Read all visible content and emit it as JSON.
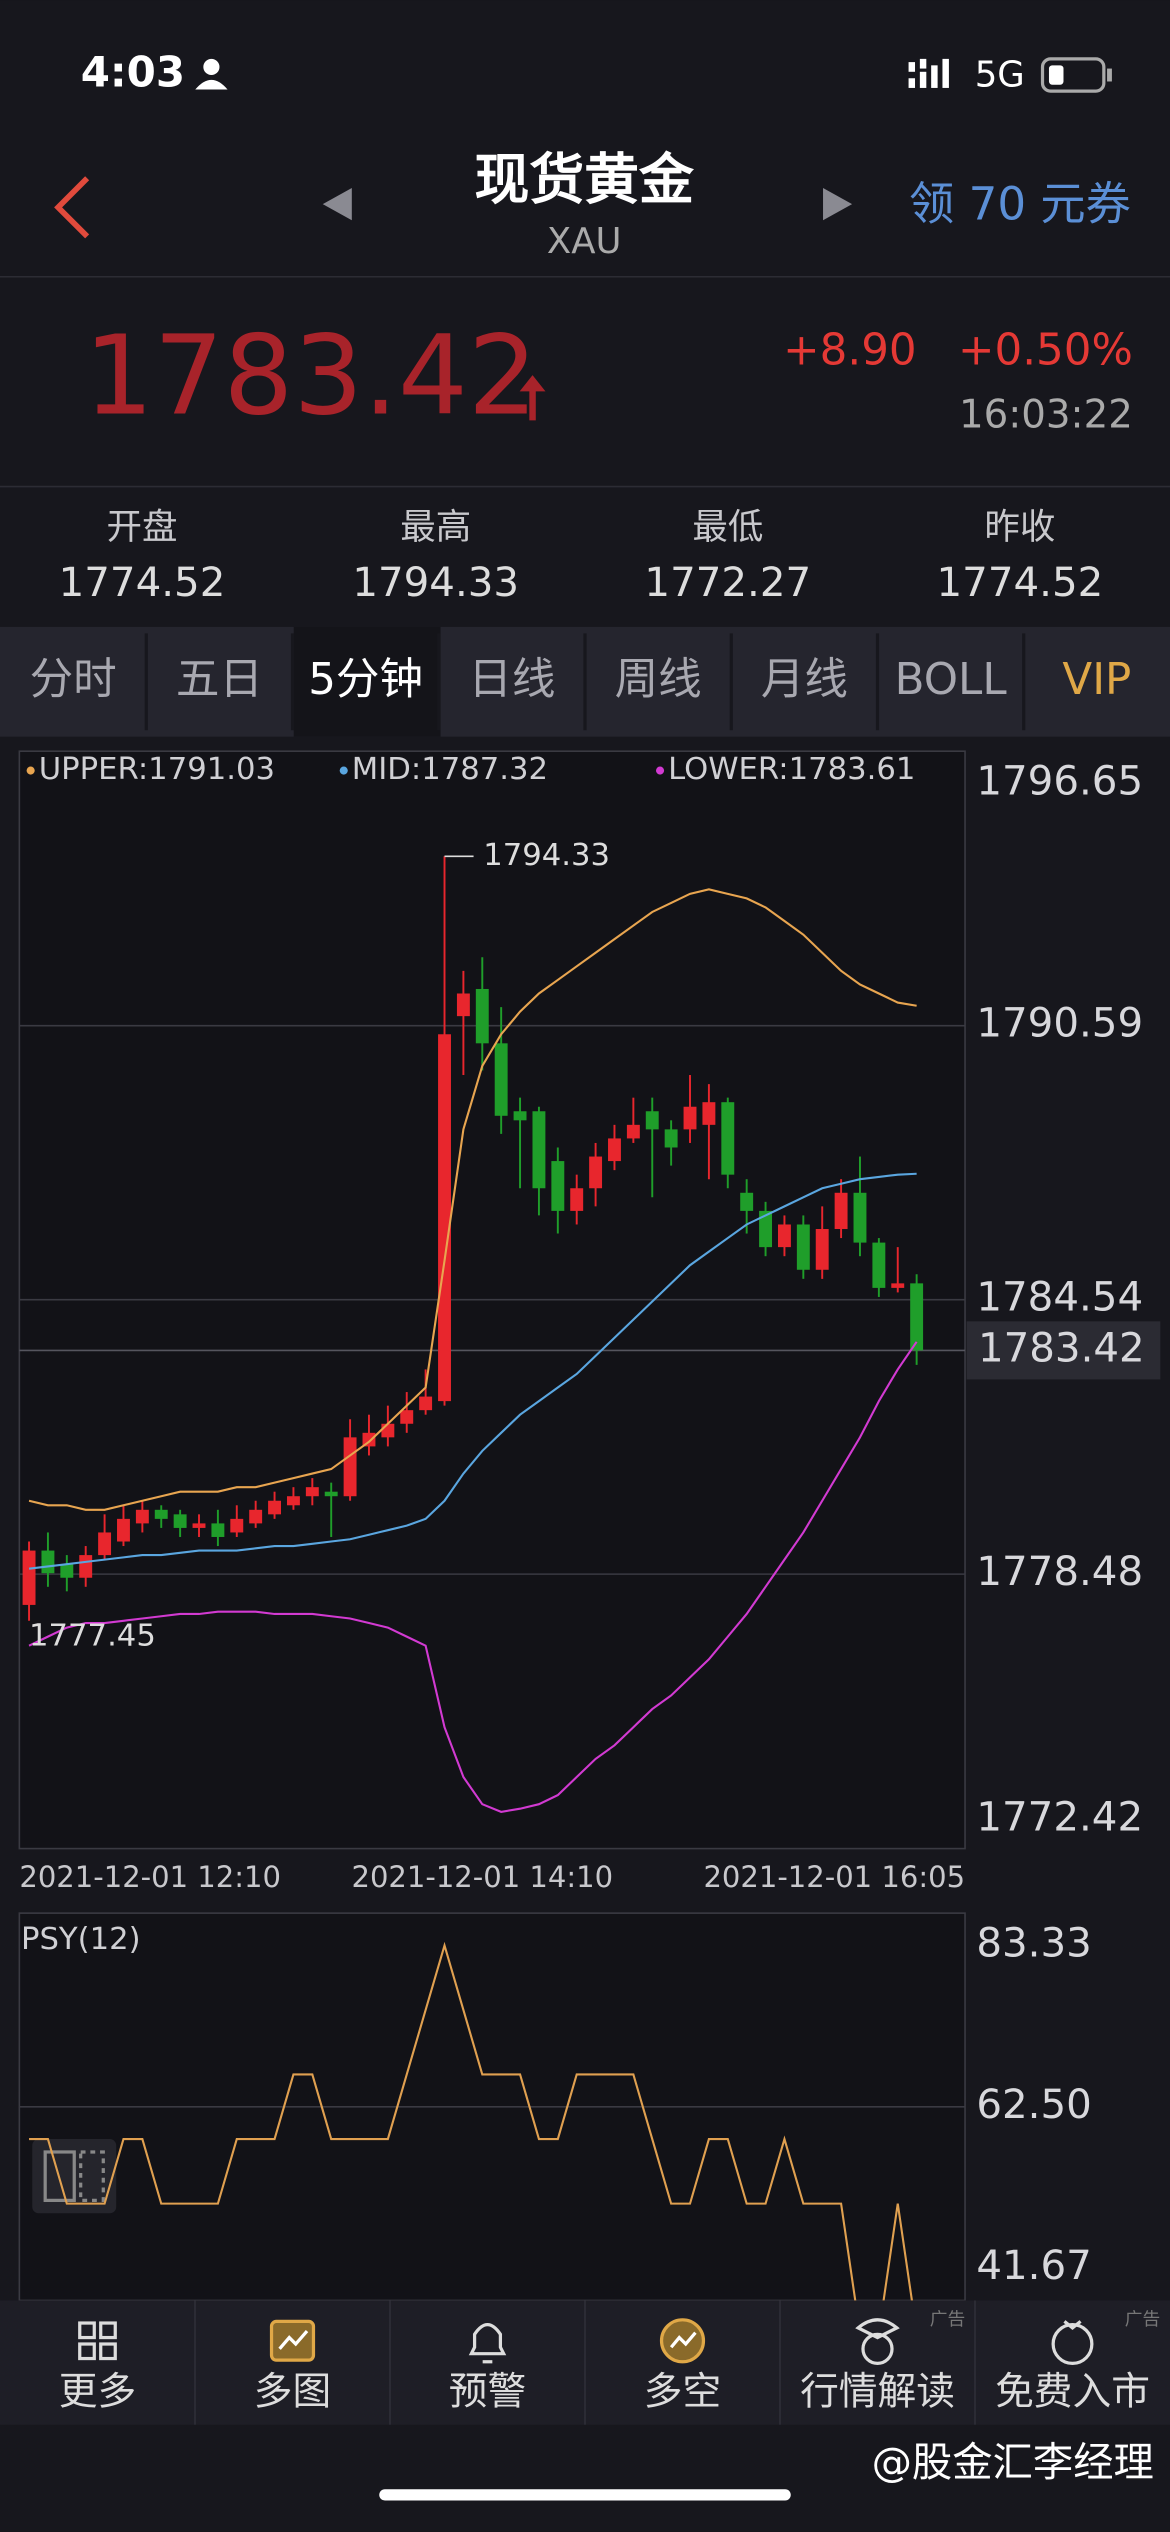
{
  "status": {
    "time": "4:03",
    "network": "5G"
  },
  "header": {
    "title": "现货黄金",
    "code": "XAU",
    "coupon": "领 70 元券"
  },
  "quote": {
    "price": "1783.42",
    "change": "+8.90",
    "change_percent": "+0.50%",
    "time": "16:03:22"
  },
  "stats": [
    {
      "label": "开盘",
      "value": "1774.52"
    },
    {
      "label": "最高",
      "value": "1794.33"
    },
    {
      "label": "最低",
      "value": "1772.27"
    },
    {
      "label": "昨收",
      "value": "1774.52"
    }
  ],
  "tabs": [
    "分时",
    "五日",
    "5分钟",
    "日线",
    "周线",
    "月线",
    "BOLL",
    "VIP"
  ],
  "chart_data": [
    {
      "type": "candlestick",
      "categories": [
        "2021-12-01 12:10",
        null,
        null,
        null,
        null,
        null,
        null,
        null,
        null,
        null,
        null,
        null,
        null,
        null,
        null,
        null,
        null,
        null,
        null,
        null,
        null,
        null,
        null,
        null,
        "2021-12-01 14:10",
        null,
        null,
        null,
        null,
        null,
        null,
        null,
        null,
        null,
        null,
        null,
        null,
        null,
        null,
        null,
        null,
        null,
        null,
        null,
        null,
        null,
        null,
        "2021-12-01 16:05"
      ],
      "open": [
        1777.8,
        1779.0,
        1778.7,
        1778.4,
        1778.9,
        1779.2,
        1779.6,
        1779.9,
        1779.8,
        1779.5,
        1779.6,
        1779.4,
        1779.6,
        1779.8,
        1780.0,
        1780.2,
        1780.3,
        1780.2,
        1781.3,
        1781.5,
        1781.8,
        1782.1,
        1782.3,
        1790.8,
        1791.4,
        1790.2,
        1788.7,
        1788.7,
        1787.6,
        1786.5,
        1787.0,
        1787.6,
        1788.1,
        1788.7,
        1788.3,
        1788.3,
        1788.4,
        1788.9,
        1786.9,
        1786.5,
        1785.7,
        1786.2,
        1785.2,
        1786.1,
        1786.9,
        1785.8,
        1784.8,
        1784.9
      ],
      "high": [
        1779.2,
        1779.4,
        1778.9,
        1779.1,
        1779.8,
        1780.0,
        1780.1,
        1780.0,
        1779.9,
        1779.8,
        1779.9,
        1780.0,
        1780.1,
        1780.3,
        1780.4,
        1780.6,
        1780.5,
        1781.9,
        1782.0,
        1782.2,
        1782.5,
        1783.0,
        1794.33,
        1791.8,
        1792.1,
        1791.0,
        1789.0,
        1788.8,
        1787.9,
        1787.3,
        1788.0,
        1788.4,
        1789.0,
        1789.0,
        1788.5,
        1789.5,
        1789.3,
        1789.0,
        1787.2,
        1786.7,
        1786.4,
        1786.4,
        1786.6,
        1787.2,
        1787.7,
        1785.9,
        1785.7,
        1785.1
      ],
      "low": [
        1777.45,
        1778.2,
        1778.1,
        1778.2,
        1778.8,
        1779.1,
        1779.4,
        1779.5,
        1779.3,
        1779.3,
        1779.1,
        1779.3,
        1779.5,
        1779.7,
        1779.9,
        1780.0,
        1779.3,
        1780.1,
        1781.1,
        1781.3,
        1781.6,
        1782.0,
        1782.2,
        1789.5,
        1789.6,
        1788.2,
        1787.0,
        1786.4,
        1786.0,
        1786.2,
        1786.6,
        1787.4,
        1788.0,
        1786.8,
        1787.5,
        1788.0,
        1787.2,
        1787.0,
        1786.0,
        1785.5,
        1785.5,
        1785.0,
        1785.0,
        1785.9,
        1785.5,
        1784.6,
        1784.7,
        1783.1
      ],
      "close": [
        1779.0,
        1778.5,
        1778.4,
        1778.9,
        1779.4,
        1779.7,
        1779.9,
        1779.7,
        1779.5,
        1779.6,
        1779.3,
        1779.7,
        1779.9,
        1780.1,
        1780.2,
        1780.4,
        1780.2,
        1781.5,
        1781.6,
        1781.8,
        1782.1,
        1782.4,
        1790.4,
        1791.3,
        1790.2,
        1788.6,
        1788.5,
        1787.0,
        1786.5,
        1787.0,
        1787.7,
        1788.1,
        1788.4,
        1788.3,
        1787.9,
        1788.8,
        1788.9,
        1787.3,
        1786.5,
        1785.7,
        1786.2,
        1785.2,
        1786.1,
        1786.9,
        1785.8,
        1784.8,
        1784.9,
        1783.42
      ],
      "up_color": "#e8262d",
      "down_color": "#1f9e2a",
      "series": [
        {
          "name": "UPPER:1791.03",
          "color": "#e8a550",
          "values": [
            1780.1,
            1780.0,
            1780.0,
            1779.9,
            1779.9,
            1780.0,
            1780.1,
            1780.2,
            1780.3,
            1780.3,
            1780.3,
            1780.4,
            1780.4,
            1780.5,
            1780.6,
            1780.7,
            1780.8,
            1781.1,
            1781.4,
            1781.8,
            1782.2,
            1782.6,
            1785.4,
            1788.3,
            1789.7,
            1790.4,
            1790.9,
            1791.3,
            1791.6,
            1791.9,
            1792.2,
            1792.5,
            1792.8,
            1793.1,
            1793.3,
            1793.5,
            1793.6,
            1793.5,
            1793.4,
            1793.2,
            1792.9,
            1792.6,
            1792.2,
            1791.8,
            1791.5,
            1791.3,
            1791.1,
            1791.03
          ]
        },
        {
          "name": "MID:1787.32",
          "color": "#5aa6e0",
          "values": [
            1778.6,
            1778.65,
            1778.7,
            1778.75,
            1778.8,
            1778.85,
            1778.9,
            1778.9,
            1778.95,
            1779.0,
            1779.0,
            1779.0,
            1779.05,
            1779.1,
            1779.1,
            1779.15,
            1779.2,
            1779.25,
            1779.35,
            1779.45,
            1779.55,
            1779.7,
            1780.1,
            1780.7,
            1781.2,
            1781.6,
            1782.0,
            1782.3,
            1782.6,
            1782.9,
            1783.3,
            1783.7,
            1784.1,
            1784.5,
            1784.9,
            1785.3,
            1785.6,
            1785.9,
            1786.2,
            1786.4,
            1786.6,
            1786.8,
            1787.0,
            1787.1,
            1787.2,
            1787.25,
            1787.3,
            1787.32
          ]
        },
        {
          "name": "LOWER:1783.61",
          "color": "#d23ad2",
          "values": [
            1776.9,
            1777.1,
            1777.3,
            1777.4,
            1777.4,
            1777.45,
            1777.5,
            1777.55,
            1777.6,
            1777.6,
            1777.65,
            1777.65,
            1777.65,
            1777.6,
            1777.6,
            1777.6,
            1777.55,
            1777.5,
            1777.4,
            1777.3,
            1777.1,
            1776.9,
            1775.1,
            1774.0,
            1773.4,
            1773.23,
            1773.3,
            1773.4,
            1773.6,
            1774.0,
            1774.4,
            1774.7,
            1775.1,
            1775.5,
            1775.8,
            1776.2,
            1776.6,
            1777.1,
            1777.6,
            1778.2,
            1778.8,
            1779.4,
            1780.1,
            1780.8,
            1781.5,
            1782.3,
            1783.0,
            1783.61
          ]
        }
      ],
      "annotations": {
        "high": "1794.33",
        "low": "1777.45",
        "last": "1783.42"
      },
      "ylim": [
        1772.42,
        1796.65
      ],
      "yticks": [
        1772.42,
        1778.48,
        1784.54,
        1790.59,
        1796.65
      ],
      "grid": true
    },
    {
      "type": "line",
      "title": "PSY(12)",
      "series": [
        {
          "color": "#e0a050",
          "values": [
            58.33,
            58.33,
            50,
            50,
            50,
            58.33,
            58.33,
            50,
            50,
            50,
            50,
            58.33,
            58.33,
            58.33,
            66.67,
            66.67,
            58.33,
            58.33,
            58.33,
            58.33,
            66.67,
            75,
            83.33,
            75,
            66.67,
            66.67,
            66.67,
            58.33,
            58.33,
            66.67,
            66.67,
            66.67,
            66.67,
            58.33,
            50,
            50,
            58.33,
            58.33,
            50,
            50,
            58.33,
            50,
            50,
            50,
            33.33,
            33.33,
            50,
            33.33
          ]
        }
      ],
      "ylim": [
        37.5,
        87.5
      ],
      "yticks": [
        41.67,
        {
          "value": 62.5,
          "label": "62.50"
        },
        83.33
      ],
      "grid": true
    }
  ],
  "nav": [
    {
      "label": "更多"
    },
    {
      "label": "多图"
    },
    {
      "label": "预警"
    },
    {
      "label": "多空"
    },
    {
      "label": "行情解读",
      "ad": "广告"
    },
    {
      "label": "免费入市",
      "ad": "广告"
    }
  ],
  "watermark": "@股金汇李经理"
}
